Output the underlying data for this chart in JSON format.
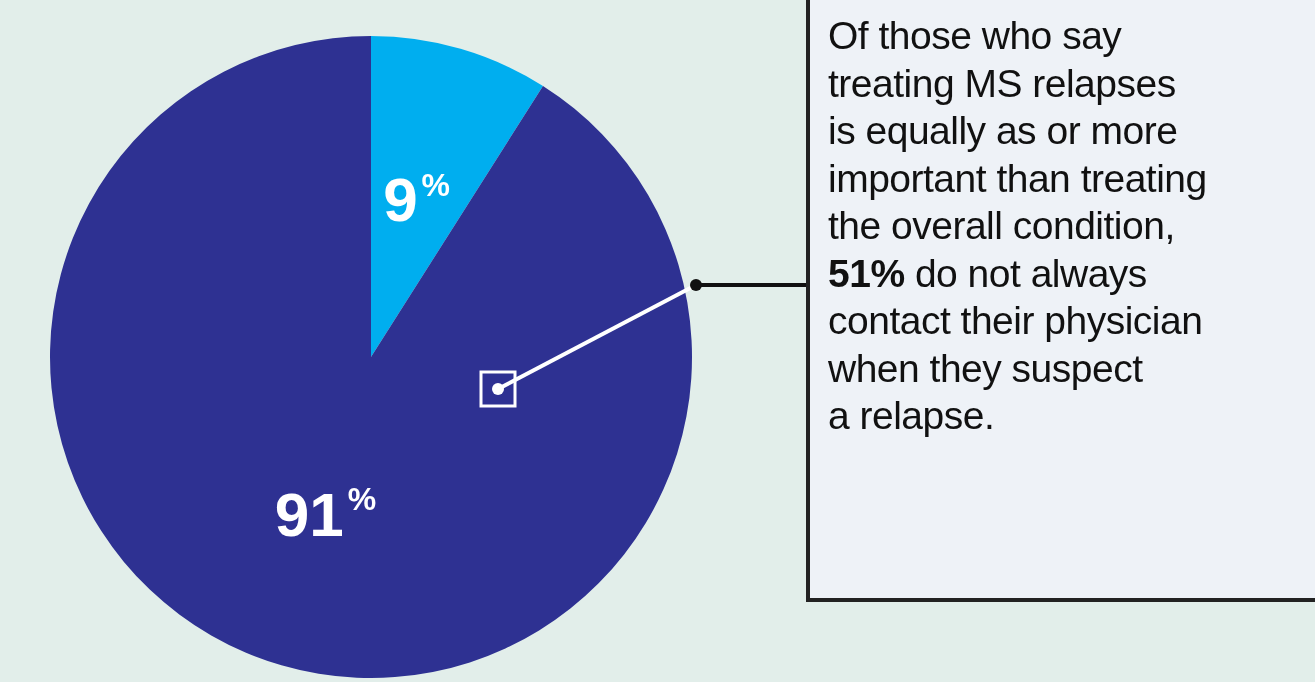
{
  "chart_data": {
    "type": "pie",
    "categories": [
      null,
      null
    ],
    "values": [
      9,
      91
    ],
    "colors": [
      "#00aeef",
      "#2e3192"
    ],
    "value_labels": [
      "9%",
      "91%"
    ],
    "annotations": [
      "Of those who say\ntreating MS relapses\nis equally as or more\nimportant than treating\nthe overall condition,\n51% do not always\ncontact their physician\nwhen they suspect\na relapse."
    ]
  }
}
